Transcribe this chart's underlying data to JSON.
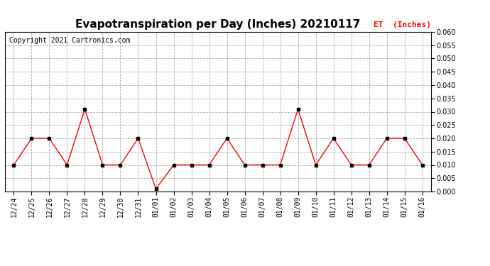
{
  "title": "Evapotranspiration per Day (Inches) 20210117",
  "copyright_text": "Copyright 2021 Cartronics.com",
  "legend_label": "ET  (Inches)",
  "legend_color": "#ff0000",
  "copyright_color": "#000000",
  "line_color": "#ff0000",
  "marker_color": "#000000",
  "background_color": "#ffffff",
  "grid_color": "#aaaaaa",
  "x_labels": [
    "12/24",
    "12/25",
    "12/26",
    "12/27",
    "12/28",
    "12/29",
    "12/30",
    "12/31",
    "01/01",
    "01/02",
    "01/03",
    "01/04",
    "01/05",
    "01/06",
    "01/07",
    "01/08",
    "01/09",
    "01/10",
    "01/11",
    "01/12",
    "01/13",
    "01/14",
    "01/15",
    "01/16"
  ],
  "y_values": [
    0.01,
    0.02,
    0.02,
    0.01,
    0.031,
    0.01,
    0.01,
    0.02,
    0.001,
    0.01,
    0.01,
    0.01,
    0.02,
    0.01,
    0.01,
    0.01,
    0.031,
    0.01,
    0.02,
    0.01,
    0.01,
    0.02,
    0.02,
    0.01
  ],
  "ylim": [
    0.0,
    0.06
  ],
  "yticks": [
    0.0,
    0.005,
    0.01,
    0.015,
    0.02,
    0.025,
    0.03,
    0.035,
    0.04,
    0.045,
    0.05,
    0.055,
    0.06
  ],
  "title_fontsize": 11,
  "tick_fontsize": 7,
  "copyright_fontsize": 7,
  "legend_fontsize": 8
}
